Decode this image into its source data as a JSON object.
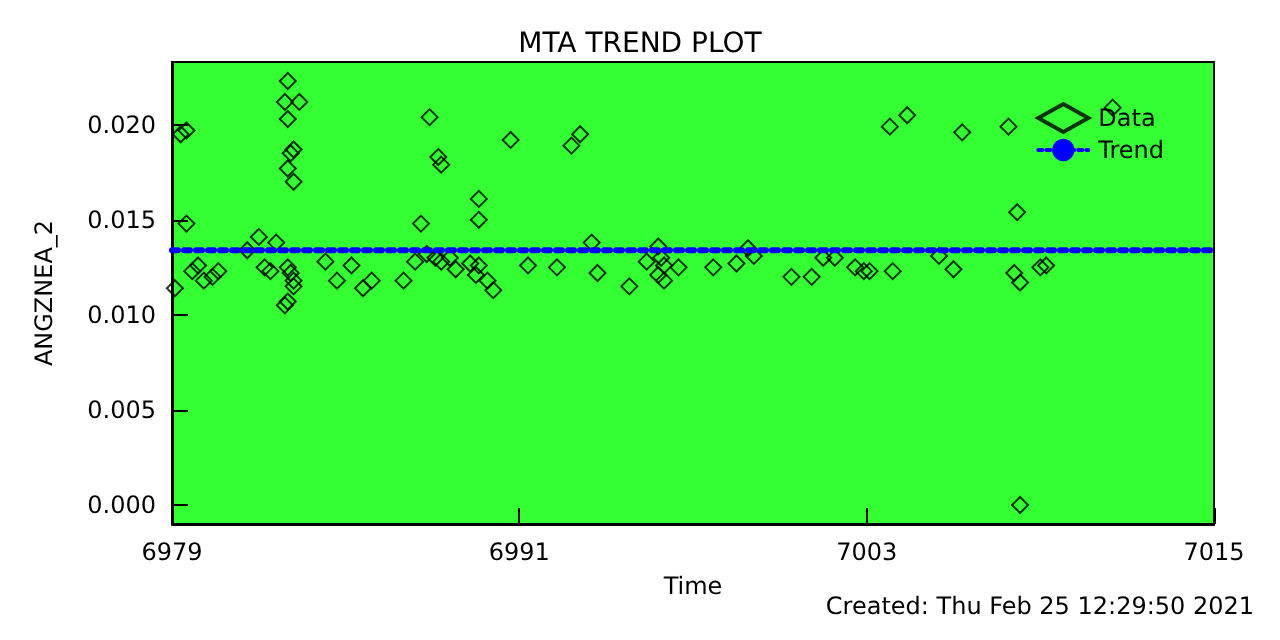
{
  "chart_data": {
    "type": "scatter",
    "title": "MTA TREND PLOT",
    "xlabel": "Time",
    "ylabel": "ANGZNEA_2",
    "annotations": [
      "Created: Thu Feb 25 12:29:50 2021"
    ],
    "xlim": [
      6979,
      7015
    ],
    "xticks": [
      6979,
      6991,
      7003,
      7015
    ],
    "ylim": [
      -0.001,
      0.0233
    ],
    "yticks": [
      {
        "value": 0,
        "label": "0.000"
      },
      {
        "value": 0.005,
        "label": "0.005"
      },
      {
        "value": 0.01,
        "label": "0.010"
      },
      {
        "value": 0.015,
        "label": "0.015"
      },
      {
        "value": 0.02,
        "label": "0.020"
      }
    ],
    "grid": false,
    "legend": "top right",
    "marker": "diamond",
    "series": [
      {
        "name": "Data",
        "color": "#000000",
        "x": [
          6979.1,
          6979.3,
          6979.5,
          6979.5,
          6979.7,
          6979.9,
          6980.1,
          6980.4,
          6980.6,
          6981.6,
          6982.0,
          6982.2,
          6982.4,
          6982.6,
          6983.0,
          6982.9,
          6983.4,
          6983.0,
          6983.2,
          6983.1,
          6983.0,
          6983.2,
          6983.0,
          6983.1,
          6983.2,
          6983.2,
          6983.0,
          6982.9,
          6984.3,
          6984.7,
          6985.2,
          6985.6,
          6985.9,
          6987.0,
          6987.4,
          6987.6,
          6987.9,
          6988.2,
          6988.3,
          6987.8,
          6988.1,
          6988.3,
          6988.6,
          6988.8,
          6989.3,
          6989.5,
          6989.6,
          6989.9,
          6990.1,
          6989.6,
          6989.6,
          6990.7,
          6991.3,
          6992.3,
          6992.8,
          6993.1,
          6993.5,
          6993.7,
          6994.8,
          6995.8,
          6995.9,
          6996.0,
          6995.8,
          6996.0,
          6995.4,
          6996.5,
          6997.7,
          6998.5,
          6998.9,
          6999.1,
          7000.4,
          7001.1,
          7001.5,
          7001.9,
          7002.6,
          7002.9,
          7003.1,
          7003.8,
          7004.4,
          7003.9,
          7005.5,
          7006.0,
          7006.3,
          7007.9,
          7008.2,
          7008.1,
          7008.3,
          7009.0,
          7009.2,
          7011.5,
          7008.3
        ],
        "values": [
          0.0114,
          0.0195,
          0.0197,
          0.0148,
          0.0123,
          0.0126,
          0.0118,
          0.012,
          0.0123,
          0.0134,
          0.0141,
          0.0125,
          0.0123,
          0.0138,
          0.0223,
          0.0212,
          0.0212,
          0.0203,
          0.0187,
          0.0185,
          0.0177,
          0.017,
          0.0125,
          0.0122,
          0.0118,
          0.0115,
          0.0107,
          0.0105,
          0.0128,
          0.0118,
          0.0126,
          0.0114,
          0.0118,
          0.0118,
          0.0128,
          0.0148,
          0.0204,
          0.0183,
          0.0179,
          0.0132,
          0.013,
          0.0128,
          0.013,
          0.0124,
          0.0127,
          0.0121,
          0.0126,
          0.0118,
          0.0113,
          0.0161,
          0.015,
          0.0192,
          0.0126,
          0.0125,
          0.0189,
          0.0195,
          0.0138,
          0.0122,
          0.0115,
          0.0136,
          0.013,
          0.0126,
          0.0121,
          0.0118,
          0.0128,
          0.0125,
          0.0125,
          0.0127,
          0.0135,
          0.0131,
          0.012,
          0.012,
          0.013,
          0.013,
          0.0125,
          0.0123,
          0.0123,
          0.0199,
          0.0205,
          0.0123,
          0.0131,
          0.0124,
          0.0196,
          0.0199,
          0.0154,
          0.0122,
          0.0117,
          0.0125,
          0.0126,
          0.0209,
          0.0
        ]
      },
      {
        "name": "Trend",
        "type": "line",
        "color": "#0000ff",
        "marker": "none",
        "line_style": "dotted",
        "x": [
          6979,
          7015
        ],
        "values": [
          0.0134,
          0.0134
        ]
      }
    ]
  }
}
